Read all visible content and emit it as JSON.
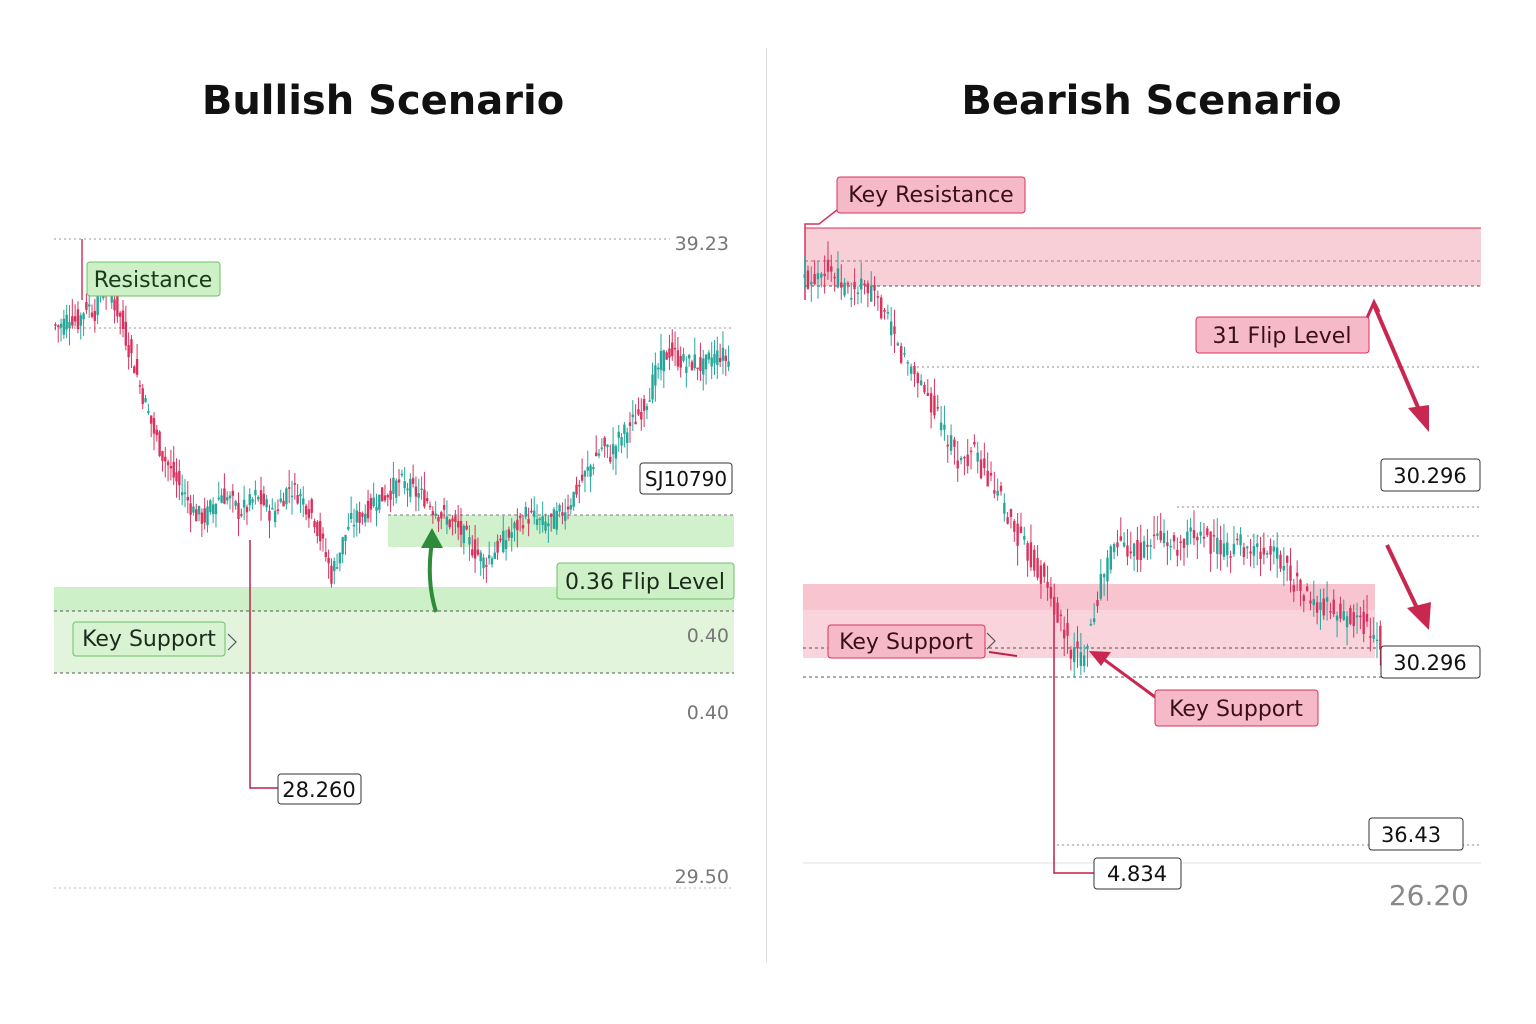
{
  "colors": {
    "up": "#26a69a",
    "down": "#d9325e",
    "green_zone": "#c9efc3",
    "green_label_bg": "#cdf0c6",
    "green_label_border": "#6cbf6a",
    "red_zone": "#f7c6d0",
    "red_label_bg": "#f6b9c7",
    "red_label_border": "#d9325e",
    "arrow_green": "#2e8b3a",
    "arrow_red": "#c8284f",
    "axis_text": "#777777"
  },
  "panels": {
    "bullish": {
      "title": "Bullish Scenario",
      "labels": {
        "resistance": "Resistance",
        "flip_level": "0.36 Flip Level",
        "key_support": "Key Support"
      },
      "price_tags": {
        "ticker": "SJ10790",
        "low_marker": "28.260"
      },
      "axis_values": [
        "39.23",
        "0.40",
        "0.40",
        "29.50"
      ]
    },
    "bearish": {
      "title": "Bearish Scenario",
      "labels": {
        "key_resistance": "Key Resistance",
        "flip_level": "31 Flip Level",
        "key_support_zone": "Key Support",
        "key_support_callout": "Key Support"
      },
      "price_tags": {
        "tag_upper": "30.296",
        "tag_lower": "30.296",
        "tag_36": "36.43",
        "low_marker": "4.834"
      },
      "axis_values": [
        "26.20"
      ]
    }
  },
  "chart_data": [
    {
      "type": "candlestick",
      "title": "Bullish Scenario",
      "series": [
        {
          "name": "price",
          "close": [
            36.8,
            37.1,
            36.9,
            37.4,
            37.2,
            38.0,
            37.6,
            37.0,
            36.2,
            35.4,
            34.6,
            33.8,
            33.2,
            32.7,
            32.3,
            31.9,
            31.5,
            31.4,
            31.8,
            32.1,
            31.9,
            31.6,
            31.7,
            32.0,
            31.8,
            31.5,
            31.9,
            32.3,
            32.1,
            31.8,
            31.4,
            30.6,
            29.8,
            30.5,
            31.2,
            31.4,
            31.6,
            31.9,
            32.0,
            32.2,
            32.4,
            32.3,
            32.1,
            32.0,
            31.7,
            31.5,
            31.3,
            31.1,
            30.8,
            30.5,
            30.2,
            30.4,
            30.7,
            30.9,
            31.2,
            31.5,
            31.4,
            31.2,
            31.3,
            31.5,
            31.8,
            32.2,
            32.6,
            33.0,
            33.4,
            33.2,
            33.6,
            33.9,
            34.2,
            34.6,
            35.2,
            35.8,
            36.1,
            35.9,
            35.7,
            35.8,
            35.6,
            35.9,
            36.0,
            35.8
          ]
        }
      ],
      "annotations": [
        "Resistance",
        "0.36 Flip Level",
        "Key Support",
        "28.260",
        "SJ10790"
      ],
      "axis_labels": [
        "39.23",
        "0.40",
        "0.40",
        "29.50"
      ]
    },
    {
      "type": "candlestick",
      "title": "Bearish Scenario",
      "series": [
        {
          "name": "price",
          "close": [
            38.2,
            38.6,
            38.4,
            38.1,
            37.9,
            38.0,
            37.8,
            37.5,
            36.9,
            36.3,
            36.0,
            35.6,
            35.1,
            34.5,
            34.0,
            33.6,
            33.9,
            33.5,
            33.0,
            32.6,
            32.1,
            31.6,
            31.2,
            30.8,
            30.2,
            29.5,
            28.9,
            28.7,
            29.6,
            30.6,
            31.4,
            31.6,
            31.5,
            31.3,
            31.6,
            31.8,
            31.5,
            31.4,
            31.7,
            31.9,
            31.6,
            31.4,
            31.5,
            31.6,
            31.4,
            31.3,
            31.4,
            31.2,
            30.8,
            30.4,
            30.1,
            29.9,
            30.0,
            29.7,
            29.8,
            29.6,
            29.4,
            29.2
          ]
        }
      ],
      "annotations": [
        "Key Resistance",
        "31 Flip Level",
        "Key Support",
        "Key Support",
        "30.296",
        "30.296",
        "36.43",
        "4.834"
      ],
      "axis_labels": [
        "26.20"
      ]
    }
  ]
}
